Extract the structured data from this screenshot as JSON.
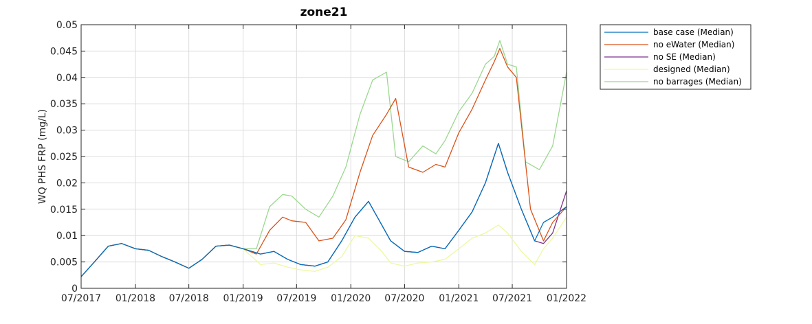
{
  "chart_data": {
    "type": "line",
    "title": "zone21",
    "xlabel": "",
    "ylabel": "WQ PHS FRP (mg/L)",
    "xlim": [
      "2017-07-01",
      "2022-01-01"
    ],
    "ylim": [
      0,
      0.05
    ],
    "x_ticks": [
      "07/2017",
      "01/2018",
      "07/2018",
      "01/2019",
      "07/2019",
      "01/2020",
      "07/2020",
      "01/2021",
      "07/2021",
      "01/2022"
    ],
    "y_ticks": [
      "0",
      "0.005",
      "0.01",
      "0.015",
      "0.02",
      "0.025",
      "0.03",
      "0.035",
      "0.04",
      "0.045",
      "0.05"
    ],
    "grid": true,
    "legend_position": "outside-top-right",
    "series": [
      {
        "name": "base case (Median)",
        "color": "#0072BD",
        "x": [
          "2017-07-01",
          "2017-08-15",
          "2017-10-01",
          "2017-11-15",
          "2018-01-01",
          "2018-02-15",
          "2018-04-01",
          "2018-05-15",
          "2018-07-01",
          "2018-08-15",
          "2018-10-01",
          "2018-11-15",
          "2019-01-01",
          "2019-03-01",
          "2019-04-15",
          "2019-06-01",
          "2019-07-15",
          "2019-09-01",
          "2019-10-15",
          "2019-12-01",
          "2020-01-15",
          "2020-03-01",
          "2020-04-15",
          "2020-05-15",
          "2020-07-01",
          "2020-08-15",
          "2020-10-01",
          "2020-11-15",
          "2021-01-01",
          "2021-02-15",
          "2021-04-01",
          "2021-05-15",
          "2021-06-15",
          "2021-08-01",
          "2021-09-15",
          "2021-10-15",
          "2021-11-15",
          "2022-01-01"
        ],
        "values": [
          0.0022,
          0.005,
          0.008,
          0.0085,
          0.0075,
          0.0072,
          0.006,
          0.005,
          0.0038,
          0.0055,
          0.008,
          0.0082,
          0.0075,
          0.0065,
          0.007,
          0.0055,
          0.0045,
          0.0042,
          0.005,
          0.009,
          0.0135,
          0.0165,
          0.012,
          0.009,
          0.007,
          0.0068,
          0.008,
          0.0075,
          0.011,
          0.0145,
          0.02,
          0.0275,
          0.022,
          0.015,
          0.009,
          0.0125,
          0.0135,
          0.0155
        ]
      },
      {
        "name": "no eWater (Median)",
        "color": "#D95319",
        "x": [
          "2017-07-01",
          "2017-08-15",
          "2017-10-01",
          "2017-11-15",
          "2018-01-01",
          "2018-02-15",
          "2018-04-01",
          "2018-05-15",
          "2018-07-01",
          "2018-08-15",
          "2018-10-01",
          "2018-11-15",
          "2019-01-01",
          "2019-02-15",
          "2019-04-01",
          "2019-05-15",
          "2019-06-15",
          "2019-08-01",
          "2019-09-15",
          "2019-11-01",
          "2019-12-15",
          "2020-02-01",
          "2020-03-15",
          "2020-05-01",
          "2020-06-01",
          "2020-07-15",
          "2020-09-01",
          "2020-10-15",
          "2020-11-15",
          "2021-01-01",
          "2021-02-15",
          "2021-04-01",
          "2021-05-01",
          "2021-05-20",
          "2021-06-15",
          "2021-07-15",
          "2021-09-01",
          "2021-10-15",
          "2021-11-15",
          "2022-01-01"
        ],
        "values": [
          0.0022,
          0.005,
          0.008,
          0.0085,
          0.0075,
          0.0072,
          0.006,
          0.005,
          0.0038,
          0.0055,
          0.008,
          0.0082,
          0.0075,
          0.0065,
          0.011,
          0.0135,
          0.0128,
          0.0125,
          0.009,
          0.0095,
          0.013,
          0.022,
          0.029,
          0.033,
          0.036,
          0.023,
          0.022,
          0.0235,
          0.023,
          0.0295,
          0.034,
          0.0395,
          0.043,
          0.0455,
          0.042,
          0.04,
          0.015,
          0.009,
          0.0125,
          0.0155
        ]
      },
      {
        "name": "no SE (Median)",
        "color": "#7E2F8E",
        "x": [
          "2017-07-01",
          "2017-08-15",
          "2017-10-01",
          "2017-11-15",
          "2018-01-01",
          "2018-02-15",
          "2018-04-01",
          "2018-05-15",
          "2018-07-01",
          "2018-08-15",
          "2018-10-01",
          "2018-11-15",
          "2019-01-01",
          "2019-03-01",
          "2019-04-15",
          "2019-06-01",
          "2019-07-15",
          "2019-09-01",
          "2019-10-15",
          "2019-12-01",
          "2020-01-15",
          "2020-03-01",
          "2020-04-15",
          "2020-05-15",
          "2020-07-01",
          "2020-08-15",
          "2020-10-01",
          "2020-11-15",
          "2021-01-01",
          "2021-02-15",
          "2021-04-01",
          "2021-05-15",
          "2021-06-15",
          "2021-08-01",
          "2021-09-15",
          "2021-10-15",
          "2021-11-15",
          "2022-01-01"
        ],
        "values": [
          0.0022,
          0.005,
          0.008,
          0.0085,
          0.0075,
          0.0072,
          0.006,
          0.005,
          0.0038,
          0.0055,
          0.008,
          0.0082,
          0.0075,
          0.0065,
          0.007,
          0.0055,
          0.0045,
          0.0042,
          0.005,
          0.009,
          0.0135,
          0.0165,
          0.012,
          0.009,
          0.007,
          0.0068,
          0.008,
          0.0075,
          0.011,
          0.0145,
          0.02,
          0.0275,
          0.022,
          0.015,
          0.009,
          0.0085,
          0.0105,
          0.0185
        ]
      },
      {
        "name": "designed (Median)",
        "color": "#EDF8A0",
        "x": [
          "2017-07-01",
          "2017-08-15",
          "2017-10-01",
          "2017-11-15",
          "2018-01-01",
          "2018-02-15",
          "2018-04-01",
          "2018-05-15",
          "2018-07-01",
          "2018-08-15",
          "2018-10-01",
          "2018-11-15",
          "2019-01-01",
          "2019-03-01",
          "2019-04-15",
          "2019-06-01",
          "2019-07-15",
          "2019-09-01",
          "2019-10-15",
          "2019-12-01",
          "2020-01-15",
          "2020-03-01",
          "2020-04-15",
          "2020-05-15",
          "2020-07-01",
          "2020-08-15",
          "2020-10-01",
          "2020-11-15",
          "2021-01-01",
          "2021-02-15",
          "2021-04-01",
          "2021-05-15",
          "2021-06-15",
          "2021-08-01",
          "2021-09-15",
          "2021-10-15",
          "2021-11-15",
          "2022-01-01"
        ],
        "values": [
          0.0022,
          0.005,
          0.008,
          0.0085,
          0.0075,
          0.0072,
          0.006,
          0.005,
          0.0038,
          0.0055,
          0.008,
          0.0082,
          0.0075,
          0.0045,
          0.0048,
          0.004,
          0.0035,
          0.0032,
          0.004,
          0.006,
          0.01,
          0.0095,
          0.007,
          0.0048,
          0.0042,
          0.0048,
          0.005,
          0.0055,
          0.0075,
          0.0095,
          0.0105,
          0.012,
          0.0105,
          0.007,
          0.0045,
          0.0075,
          0.0095,
          0.0135
        ]
      },
      {
        "name": "no barrages (Median)",
        "color": "#9BD88F",
        "x": [
          "2017-07-01",
          "2017-08-15",
          "2017-10-01",
          "2017-11-15",
          "2018-01-01",
          "2018-02-15",
          "2018-04-01",
          "2018-05-15",
          "2018-07-01",
          "2018-08-15",
          "2018-10-01",
          "2018-11-15",
          "2019-01-01",
          "2019-02-15",
          "2019-04-01",
          "2019-05-15",
          "2019-06-15",
          "2019-08-01",
          "2019-09-15",
          "2019-11-01",
          "2019-12-15",
          "2020-02-01",
          "2020-03-15",
          "2020-05-01",
          "2020-06-01",
          "2020-07-15",
          "2020-09-01",
          "2020-10-15",
          "2020-11-15",
          "2021-01-01",
          "2021-02-15",
          "2021-04-01",
          "2021-05-01",
          "2021-05-20",
          "2021-06-15",
          "2021-07-15",
          "2021-08-15",
          "2021-10-01",
          "2021-11-15",
          "2022-01-01"
        ],
        "values": [
          0.0022,
          0.005,
          0.008,
          0.0085,
          0.0075,
          0.0072,
          0.006,
          0.005,
          0.0038,
          0.0055,
          0.008,
          0.0082,
          0.0075,
          0.0075,
          0.0155,
          0.0178,
          0.0175,
          0.015,
          0.0135,
          0.0175,
          0.023,
          0.033,
          0.0395,
          0.041,
          0.025,
          0.024,
          0.027,
          0.0255,
          0.028,
          0.0335,
          0.037,
          0.0425,
          0.044,
          0.047,
          0.0425,
          0.042,
          0.024,
          0.0225,
          0.027,
          0.041
        ]
      }
    ]
  }
}
